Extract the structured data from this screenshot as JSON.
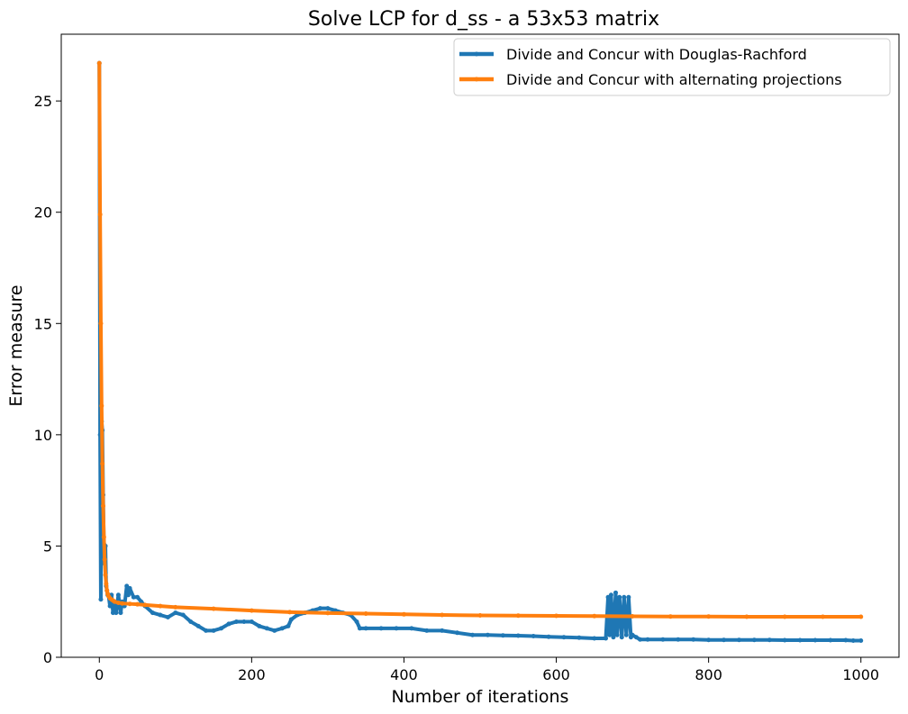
{
  "chart_data": {
    "type": "line",
    "title": "Solve LCP for d_ss - a 53x53 matrix",
    "xlabel": "Number of iterations",
    "ylabel": "Error measure",
    "xlim": [
      -50,
      1050
    ],
    "ylim": [
      0,
      28
    ],
    "xticks": [
      0,
      200,
      400,
      600,
      800,
      1000
    ],
    "yticks": [
      0,
      5,
      10,
      15,
      20,
      25
    ],
    "grid": false,
    "legend_position": "top-right",
    "series": [
      {
        "name": "Divide and Concur with Douglas-Rachford",
        "color": "#1f77b4",
        "x": [
          0,
          1,
          2,
          3,
          4,
          5,
          6,
          7,
          8,
          9,
          10,
          11,
          12,
          14,
          16,
          18,
          20,
          22,
          25,
          28,
          30,
          33,
          36,
          38,
          40,
          45,
          50,
          55,
          60,
          70,
          80,
          90,
          100,
          110,
          120,
          130,
          140,
          150,
          160,
          170,
          180,
          190,
          200,
          210,
          220,
          230,
          240,
          248,
          252,
          260,
          270,
          280,
          290,
          300,
          310,
          320,
          330,
          338,
          342,
          350,
          370,
          390,
          410,
          430,
          450,
          470,
          490,
          510,
          530,
          550,
          570,
          590,
          610,
          630,
          650,
          665,
          668,
          670,
          672,
          675,
          678,
          680,
          683,
          686,
          689,
          692,
          695,
          698,
          700,
          705,
          710,
          720,
          740,
          760,
          780,
          800,
          820,
          840,
          860,
          880,
          900,
          920,
          940,
          960,
          980,
          990,
          1000
        ],
        "values": [
          26.7,
          10.0,
          2.6,
          10.6,
          10.2,
          7.3,
          5.1,
          4.2,
          5.0,
          3.2,
          3.0,
          2.8,
          2.8,
          2.3,
          2.8,
          2.0,
          2.5,
          2.0,
          2.8,
          2.0,
          2.5,
          2.3,
          3.2,
          2.8,
          3.1,
          2.7,
          2.7,
          2.5,
          2.3,
          2.0,
          1.9,
          1.8,
          2.0,
          1.9,
          1.6,
          1.4,
          1.2,
          1.2,
          1.3,
          1.5,
          1.6,
          1.6,
          1.6,
          1.4,
          1.3,
          1.2,
          1.3,
          1.4,
          1.7,
          1.9,
          2.0,
          2.1,
          2.2,
          2.2,
          2.1,
          2.0,
          1.9,
          1.6,
          1.3,
          1.3,
          1.3,
          1.3,
          1.3,
          1.2,
          1.2,
          1.1,
          1.0,
          1.0,
          0.98,
          0.97,
          0.95,
          0.92,
          0.9,
          0.88,
          0.85,
          0.85,
          2.7,
          1.0,
          2.8,
          0.9,
          2.9,
          1.0,
          2.7,
          0.9,
          2.7,
          1.0,
          2.7,
          0.9,
          1.0,
          0.9,
          0.8,
          0.8,
          0.8,
          0.8,
          0.8,
          0.78,
          0.78,
          0.78,
          0.78,
          0.78,
          0.77,
          0.77,
          0.77,
          0.77,
          0.77,
          0.75,
          0.75
        ]
      },
      {
        "name": "Divide and Concur with alternating projections",
        "color": "#ff7f0e",
        "x": [
          0,
          1,
          2,
          3,
          4,
          5,
          6,
          7,
          8,
          9,
          10,
          11,
          12,
          14,
          16,
          18,
          20,
          25,
          30,
          40,
          50,
          60,
          80,
          100,
          150,
          200,
          250,
          300,
          350,
          400,
          450,
          500,
          550,
          600,
          650,
          700,
          750,
          800,
          850,
          900,
          950,
          1000
        ],
        "values": [
          26.7,
          19.9,
          15.0,
          11.3,
          8.7,
          6.8,
          5.4,
          4.4,
          3.7,
          3.3,
          3.0,
          2.85,
          2.75,
          2.65,
          2.6,
          2.55,
          2.5,
          2.45,
          2.42,
          2.4,
          2.38,
          2.35,
          2.3,
          2.25,
          2.18,
          2.1,
          2.03,
          1.99,
          1.96,
          1.93,
          1.9,
          1.88,
          1.87,
          1.86,
          1.85,
          1.84,
          1.83,
          1.83,
          1.82,
          1.82,
          1.82,
          1.82
        ]
      }
    ]
  }
}
